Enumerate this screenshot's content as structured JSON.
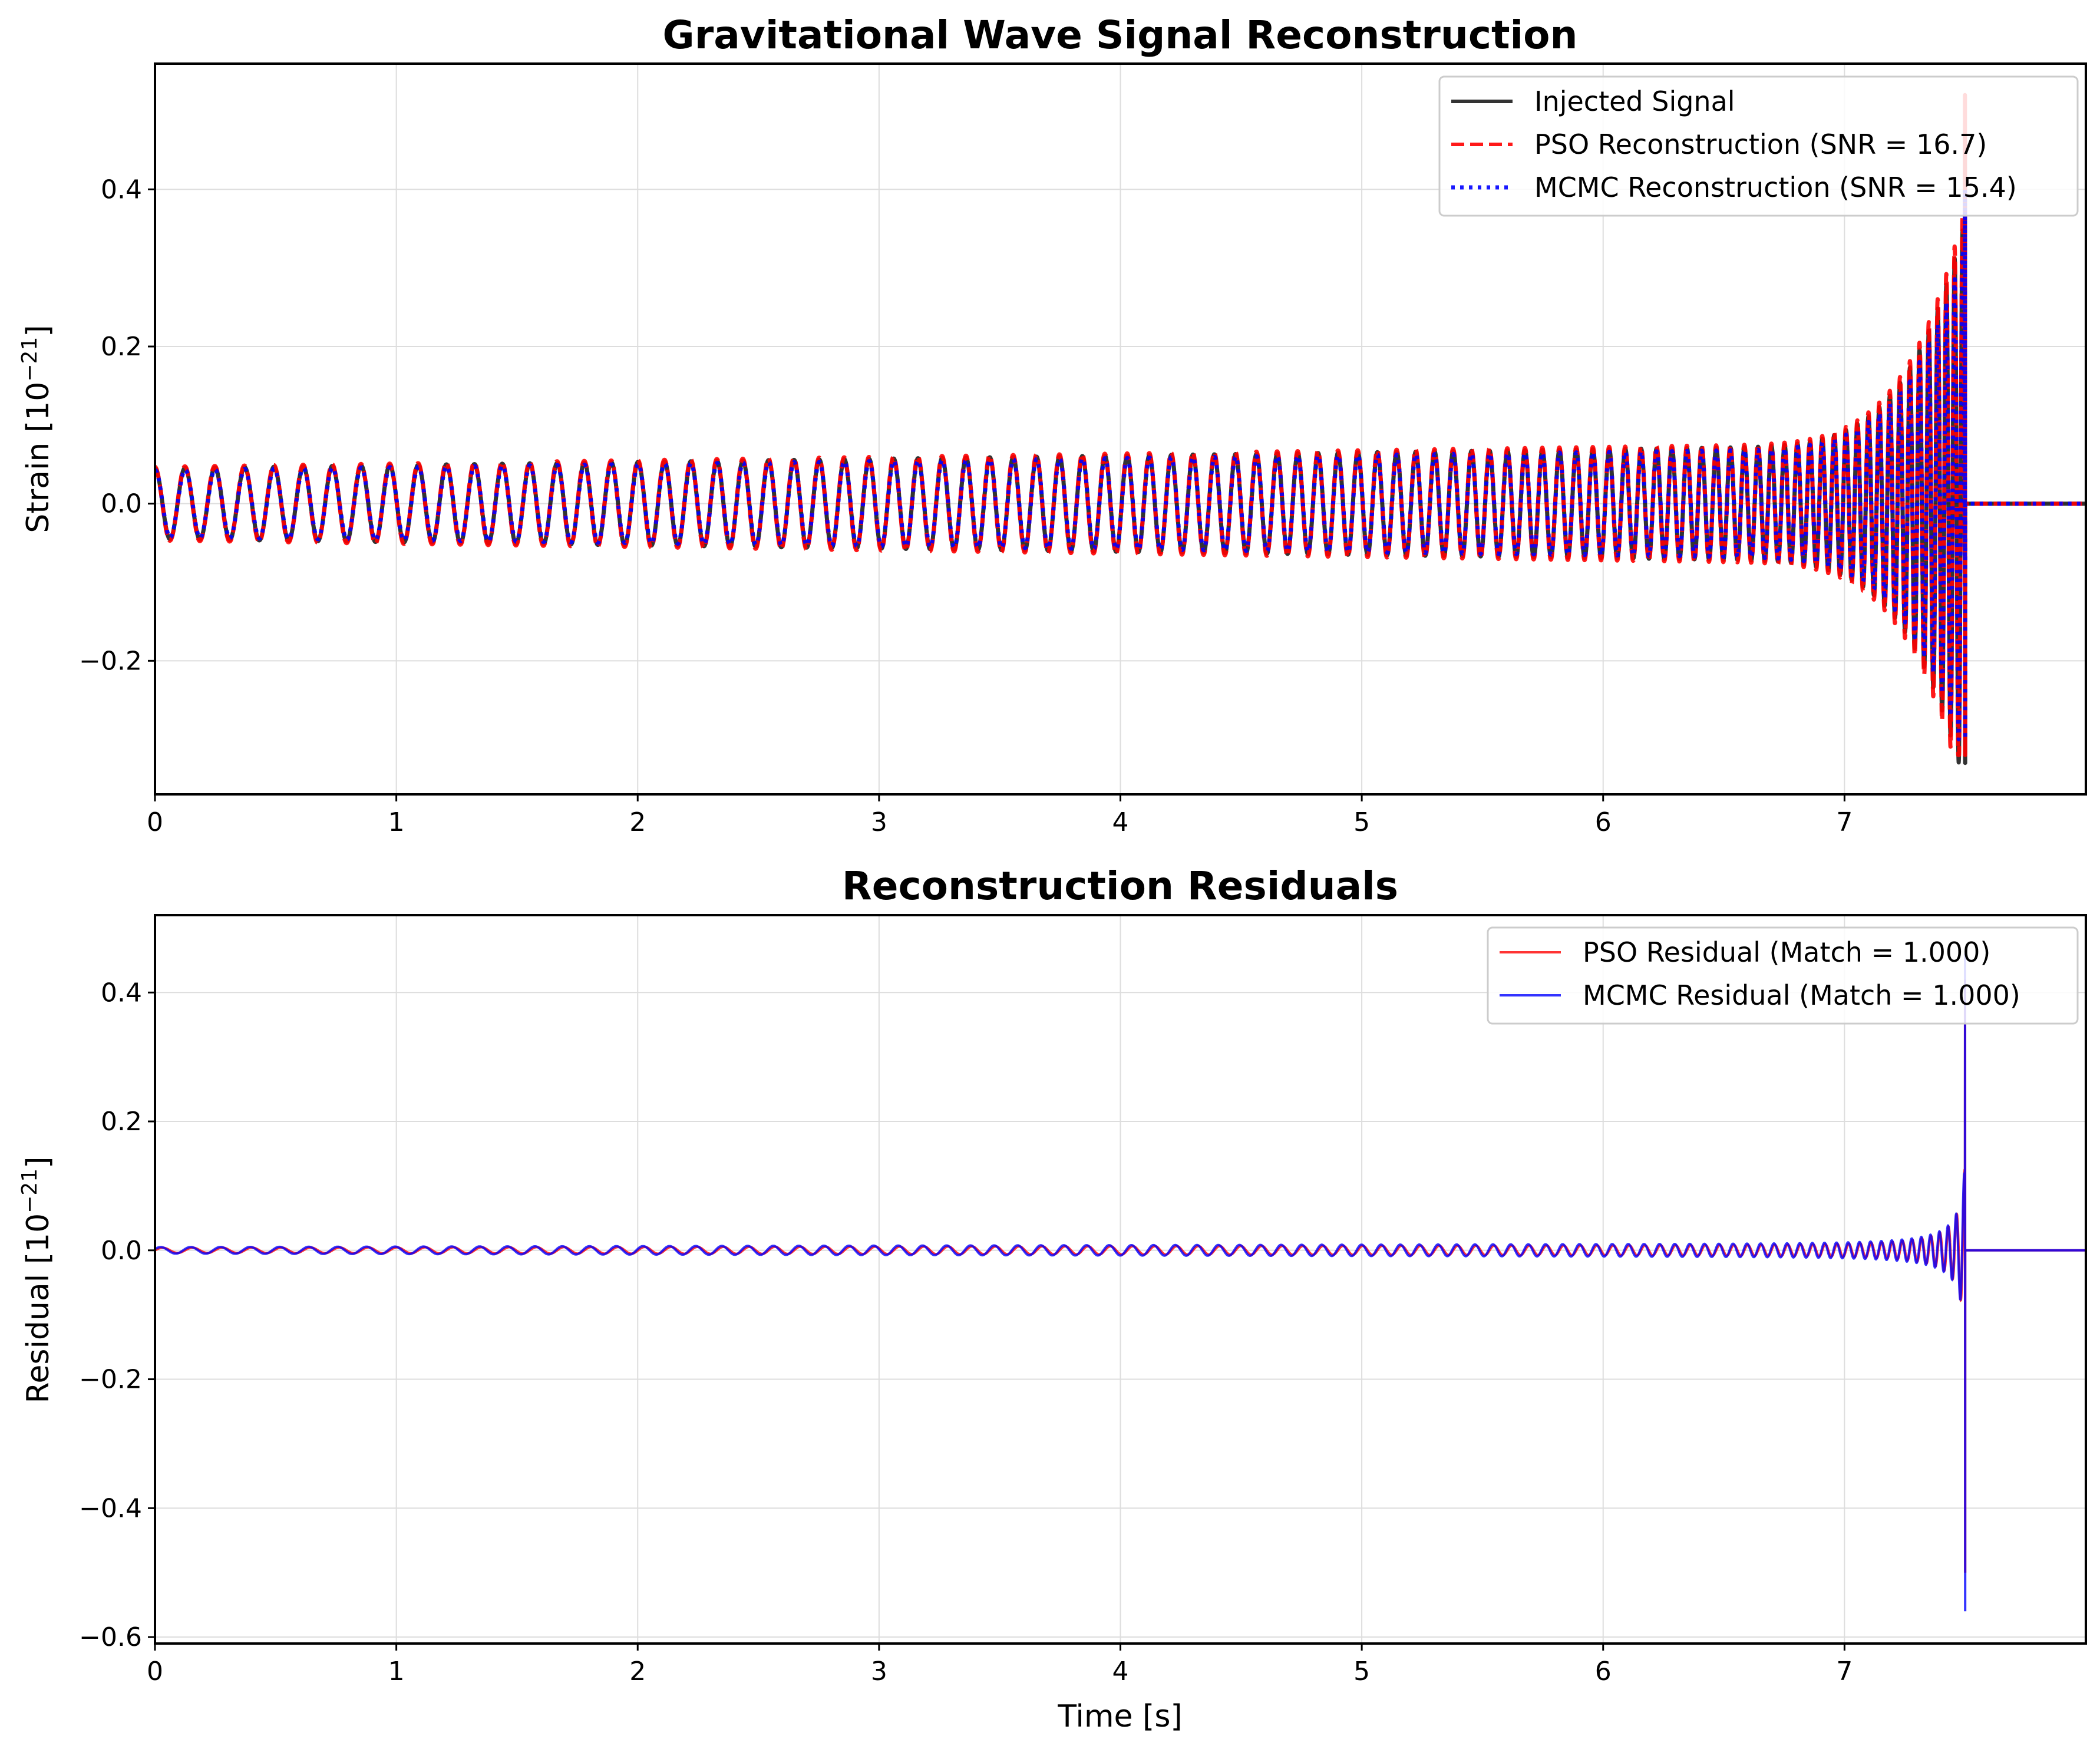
{
  "chart_data": [
    {
      "type": "line",
      "title": "Gravitational Wave Signal Reconstruction",
      "xlabel": "",
      "ylabel_base": "Strain [10",
      "ylabel_exp": "−21",
      "ylabel_end": "]",
      "xlim": [
        0,
        8
      ],
      "ylim": [
        -0.37,
        0.56
      ],
      "xticks": [
        0,
        1,
        2,
        3,
        4,
        5,
        6,
        7
      ],
      "xtick_labels": [
        "0",
        "1",
        "2",
        "3",
        "4",
        "5",
        "6",
        "7"
      ],
      "yticks": [
        -0.2,
        0.0,
        0.2,
        0.4
      ],
      "ytick_labels": [
        "−0.2",
        "0.0",
        "0.2",
        "0.4"
      ],
      "grid": true,
      "legend_placement": "top-right",
      "merger_time": 7.5,
      "series": [
        {
          "name": "Injected Signal",
          "color": "#000000",
          "style": "solid",
          "amp_start": 0.045,
          "amp_merger": 0.33,
          "peak_positive": 0.47,
          "peak_negative": -0.33
        },
        {
          "name": "PSO Reconstruction (SNR = 16.7)",
          "color": "#ff0000",
          "style": "dashed",
          "amp_start": 0.046,
          "amp_merger": 0.34,
          "peak_positive": 0.52,
          "peak_negative": -0.32
        },
        {
          "name": "MCMC Reconstruction (SNR = 15.4)",
          "color": "#0000ff",
          "style": "dotted",
          "amp_start": 0.044,
          "amp_merger": 0.31,
          "peak_positive": 0.4,
          "peak_negative": -0.3
        }
      ]
    },
    {
      "type": "line",
      "title": "Reconstruction Residuals",
      "xlabel": "Time [s]",
      "ylabel_base": "Residual [10",
      "ylabel_exp": "−21",
      "ylabel_end": "]",
      "xlim": [
        0,
        8
      ],
      "ylim": [
        -0.61,
        0.52
      ],
      "xticks": [
        0,
        1,
        2,
        3,
        4,
        5,
        6,
        7
      ],
      "xtick_labels": [
        "0",
        "1",
        "2",
        "3",
        "4",
        "5",
        "6",
        "7"
      ],
      "yticks": [
        -0.6,
        -0.4,
        -0.2,
        0.0,
        0.2,
        0.4
      ],
      "ytick_labels": [
        "−0.6",
        "−0.4",
        "−0.2",
        "0.0",
        "0.2",
        "0.4"
      ],
      "grid": true,
      "legend_placement": "top-right",
      "merger_time": 7.5,
      "series": [
        {
          "name": "PSO Residual (Match = 1.000)",
          "color": "#ff0000",
          "style": "solid",
          "amp_start": 0.004,
          "peak_positive": 0.42,
          "peak_negative": -0.5
        },
        {
          "name": "MCMC Residual (Match = 1.000)",
          "color": "#0000ff",
          "style": "solid",
          "amp_start": 0.005,
          "peak_positive": 0.46,
          "peak_negative": -0.56
        }
      ]
    }
  ]
}
